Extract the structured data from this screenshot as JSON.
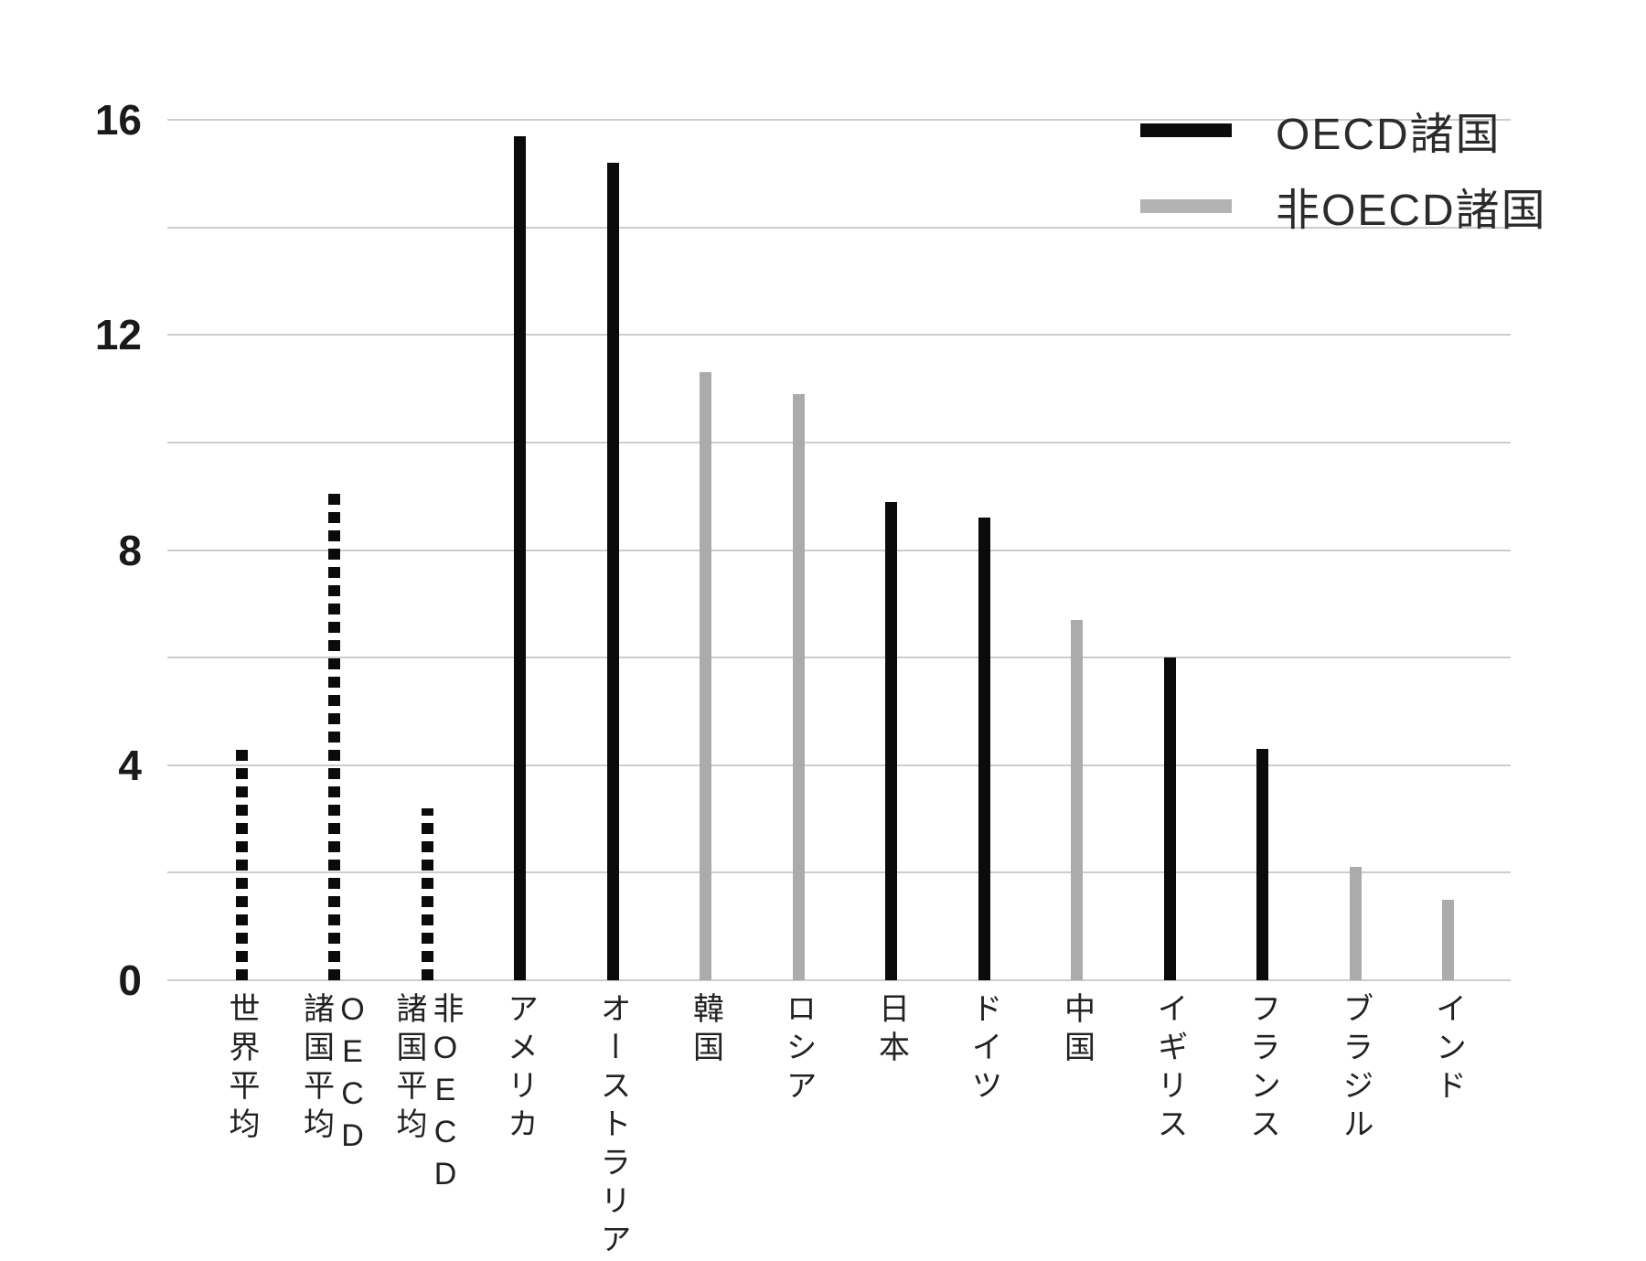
{
  "chart_data": {
    "type": "bar",
    "title": "",
    "xlabel": "",
    "ylabel": "",
    "ylim": [
      0,
      16
    ],
    "yticks": [
      0,
      4,
      8,
      12,
      16
    ],
    "gridline_step": 2,
    "grid": true,
    "legend_position": "top-right",
    "legend": [
      {
        "label": "OECD諸国",
        "color": "#0b0b0b"
      },
      {
        "label": "非OECD諸国",
        "color": "#b3b3b3"
      }
    ],
    "categories": [
      "世界平均",
      "OECD\n諸国平均",
      "非OECD\n諸国平均",
      "アメリカ",
      "オーストラリア",
      "韓国",
      "ロシア",
      "日本",
      "ドイツ",
      "中国",
      "イギリス",
      "フランス",
      "ブラジル",
      "インド"
    ],
    "values": [
      4.3,
      9.1,
      3.2,
      15.7,
      15.2,
      11.3,
      10.9,
      8.9,
      8.6,
      6.7,
      6.0,
      4.3,
      2.1,
      1.5
    ],
    "bar_styles": [
      "dashed",
      "dashed",
      "dashed",
      "solid-black",
      "solid-black",
      "solid-gray",
      "solid-gray",
      "solid-black",
      "solid-black",
      "solid-gray",
      "solid-black",
      "solid-black",
      "solid-gray",
      "solid-gray"
    ],
    "groups": [
      "average",
      "average",
      "average",
      "oecd",
      "oecd",
      "non-oecd",
      "non-oecd",
      "oecd",
      "oecd",
      "non-oecd",
      "oecd",
      "oecd",
      "non-oecd",
      "non-oecd"
    ],
    "colors": {
      "oecd_bar": "#0b0b0b",
      "non_oecd_bar": "#ababab",
      "gridline": "#cdcdcd",
      "tick_text": "#1a1a1a",
      "label_text": "#222222"
    }
  }
}
